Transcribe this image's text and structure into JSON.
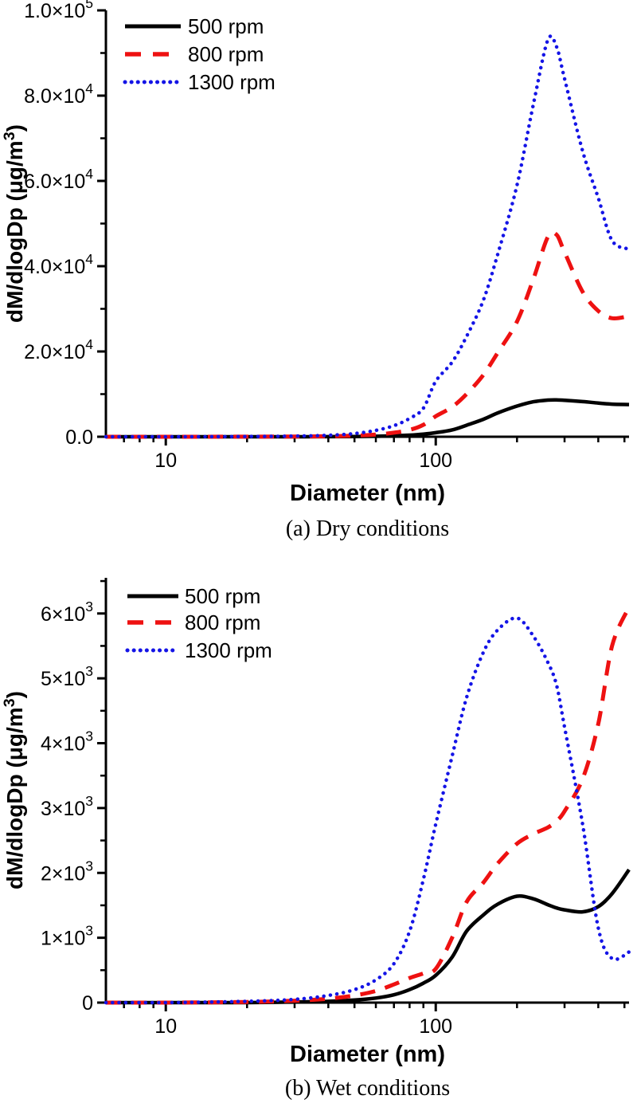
{
  "page": {
    "background": "#ffffff"
  },
  "chart_data": [
    {
      "id": "dry",
      "type": "line",
      "caption": "(a) Dry conditions",
      "xlabel": "Diameter (nm)",
      "ylabel": "dM/dlogDp (μg/m^3^)",
      "x_scale": "log",
      "xlim": [
        6,
        520
      ],
      "ylim": [
        0,
        100000
      ],
      "grid": false,
      "legend_position": "top-left",
      "xticks": [
        {
          "v": 10,
          "label": "10"
        },
        {
          "v": 100,
          "label": "100"
        }
      ],
      "xticks_minor": [
        7,
        8,
        9,
        20,
        30,
        40,
        50,
        60,
        70,
        80,
        90,
        200,
        300,
        400,
        500
      ],
      "yticks": [
        {
          "v": 0,
          "label": "0.0"
        },
        {
          "v": 20000,
          "label": "2.0×10^4"
        },
        {
          "v": 40000,
          "label": "4.0×10^4"
        },
        {
          "v": 60000,
          "label": "6.0×10^4"
        },
        {
          "v": 80000,
          "label": "8.0×10^4"
        },
        {
          "v": 100000,
          "label": "1.0×10^5"
        }
      ],
      "yminor_step": 10000,
      "x": [
        6,
        10,
        20,
        30,
        40,
        50,
        60,
        70,
        80,
        90,
        100,
        115,
        130,
        150,
        170,
        200,
        230,
        260,
        280,
        300,
        350,
        400,
        450,
        520
      ],
      "series": [
        {
          "name": "500 rpm",
          "color": "#000000",
          "style": "solid",
          "values": [
            0,
            0,
            0,
            0,
            20,
            60,
            120,
            220,
            380,
            620,
            950,
            1600,
            2700,
            4100,
            5600,
            7200,
            8200,
            8600,
            8650,
            8550,
            8250,
            7900,
            7650,
            7550
          ]
        },
        {
          "name": "800 rpm",
          "color": "#ee1111",
          "style": "dashed",
          "values": [
            0,
            0,
            20,
            50,
            120,
            260,
            520,
            950,
            1600,
            2800,
            4800,
            7000,
            10000,
            14500,
            19800,
            27000,
            37000,
            46800,
            47400,
            43300,
            34000,
            29500,
            27800,
            28300
          ]
        },
        {
          "name": "1300 rpm",
          "color": "#1414e6",
          "style": "dotted",
          "values": [
            0,
            0,
            50,
            150,
            350,
            750,
            1500,
            2600,
            4300,
            6700,
            13000,
            17500,
            23500,
            32000,
            43000,
            59000,
            78000,
            93000,
            91500,
            84000,
            67000,
            56000,
            46000,
            44000
          ]
        }
      ]
    },
    {
      "id": "wet",
      "type": "line",
      "caption": "(b) Wet conditions",
      "xlabel": "Diameter (nm)",
      "ylabel": "dM/dlogDp (μg/m^3^)",
      "x_scale": "log",
      "xlim": [
        6,
        520
      ],
      "ylim": [
        0,
        6550
      ],
      "grid": false,
      "legend_position": "top-left",
      "xticks": [
        {
          "v": 10,
          "label": "10"
        },
        {
          "v": 100,
          "label": "100"
        }
      ],
      "xticks_minor": [
        7,
        8,
        9,
        20,
        30,
        40,
        50,
        60,
        70,
        80,
        90,
        200,
        300,
        400,
        500
      ],
      "yticks": [
        {
          "v": 0,
          "label": "0"
        },
        {
          "v": 1000,
          "label": "1×10^3"
        },
        {
          "v": 2000,
          "label": "2×10^3"
        },
        {
          "v": 3000,
          "label": "3×10^3"
        },
        {
          "v": 4000,
          "label": "4×10^3"
        },
        {
          "v": 5000,
          "label": "5×10^3"
        },
        {
          "v": 6000,
          "label": "6×10^3"
        }
      ],
      "yminor_step": 500,
      "x": [
        6,
        10,
        20,
        30,
        40,
        50,
        60,
        70,
        80,
        90,
        100,
        115,
        130,
        150,
        170,
        200,
        230,
        260,
        280,
        300,
        350,
        400,
        450,
        520
      ],
      "series": [
        {
          "name": "500 rpm",
          "color": "#000000",
          "style": "solid",
          "values": [
            0,
            0,
            0,
            10,
            20,
            40,
            70,
            120,
            200,
            300,
            420,
            700,
            1100,
            1350,
            1520,
            1640,
            1600,
            1510,
            1460,
            1430,
            1400,
            1480,
            1680,
            2050
          ]
        },
        {
          "name": "800 rpm",
          "color": "#ee1111",
          "style": "dashed",
          "values": [
            0,
            0,
            10,
            30,
            60,
            110,
            180,
            280,
            380,
            450,
            520,
            1000,
            1550,
            1850,
            2150,
            2450,
            2600,
            2700,
            2800,
            2950,
            3450,
            4300,
            5500,
            6100
          ]
        },
        {
          "name": "1300 rpm",
          "color": "#1414e6",
          "style": "dotted",
          "values": [
            0,
            0,
            20,
            50,
            110,
            200,
            350,
            600,
            1100,
            1900,
            2750,
            3800,
            4700,
            5400,
            5750,
            5930,
            5650,
            5250,
            4900,
            4250,
            2750,
            1150,
            680,
            780
          ]
        }
      ]
    }
  ]
}
